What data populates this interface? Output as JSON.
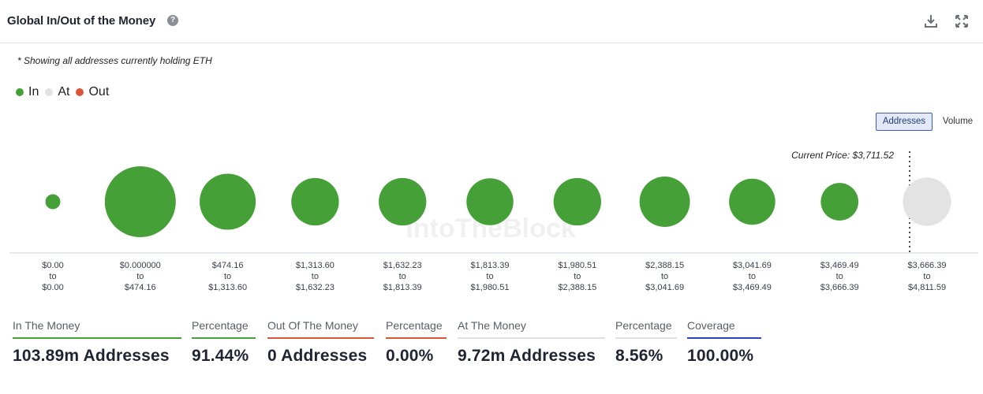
{
  "header": {
    "title": "Global In/Out of the Money",
    "help_icon": "help-circle-icon",
    "download_icon": "download-icon",
    "expand_icon": "expand-icon"
  },
  "note": "* Showing all addresses currently holding ETH",
  "legend": [
    {
      "label": "In",
      "color": "#46a038"
    },
    {
      "label": "At",
      "color": "#e3e3e3"
    },
    {
      "label": "Out",
      "color": "#d9553b"
    }
  ],
  "toggles": {
    "addresses": "Addresses",
    "volume": "Volume"
  },
  "watermark": "IntoTheBlock",
  "chart_data": {
    "type": "bubble",
    "title": "Global In/Out of the Money",
    "current_price_label": "Current Price: $3,711.52",
    "current_price": 3711.52,
    "bubble_metric": "Addresses",
    "buckets": [
      {
        "from": "$0.00",
        "to_label": "to",
        "to": "$0.00",
        "status": "in",
        "relative_size": 0.21
      },
      {
        "from": "$0.000000",
        "to_label": "to",
        "to": "$474.16",
        "status": "in",
        "relative_size": 1.0
      },
      {
        "from": "$474.16",
        "to_label": "to",
        "to": "$1,313.60",
        "status": "in",
        "relative_size": 0.79
      },
      {
        "from": "$1,313.60",
        "to_label": "to",
        "to": "$1,632.23",
        "status": "in",
        "relative_size": 0.67
      },
      {
        "from": "$1,632.23",
        "to_label": "to",
        "to": "$1,813.39",
        "status": "in",
        "relative_size": 0.67
      },
      {
        "from": "$1,813.39",
        "to_label": "to",
        "to": "$1,980.51",
        "status": "in",
        "relative_size": 0.66
      },
      {
        "from": "$1,980.51",
        "to_label": "to",
        "to": "$2,388.15",
        "status": "in",
        "relative_size": 0.67
      },
      {
        "from": "$2,388.15",
        "to_label": "to",
        "to": "$3,041.69",
        "status": "in",
        "relative_size": 0.71
      },
      {
        "from": "$3,041.69",
        "to_label": "to",
        "to": "$3,469.49",
        "status": "in",
        "relative_size": 0.65
      },
      {
        "from": "$3,469.49",
        "to_label": "to",
        "to": "$3,666.39",
        "status": "in",
        "relative_size": 0.53
      },
      {
        "from": "$3,666.39",
        "to_label": "to",
        "to": "$4,811.59",
        "status": "at",
        "relative_size": 0.68
      }
    ]
  },
  "stats": [
    {
      "label": "In The Money",
      "value": "103.89m Addresses",
      "color": "#46a038"
    },
    {
      "label": "Percentage",
      "value": "91.44%",
      "color": "#46a038"
    },
    {
      "label": "Out Of The Money",
      "value": "0 Addresses",
      "color": "#d9553b"
    },
    {
      "label": "Percentage",
      "value": "0.00%",
      "color": "#d9553b"
    },
    {
      "label": "At The Money",
      "value": "9.72m Addresses",
      "color": "#e0e0e0"
    },
    {
      "label": "Percentage",
      "value": "8.56%",
      "color": "#e0e0e0"
    },
    {
      "label": "Coverage",
      "value": "100.00%",
      "color": "#2b45b8"
    }
  ]
}
